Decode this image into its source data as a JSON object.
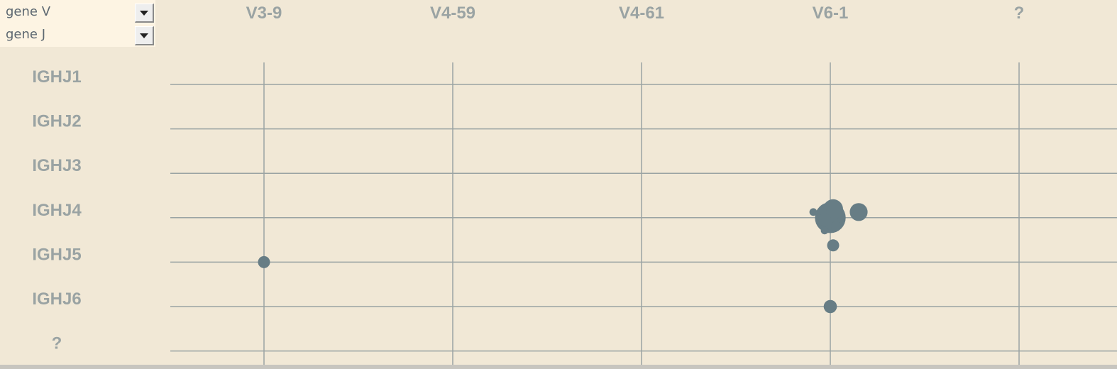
{
  "selectors": [
    {
      "label": "gene V"
    },
    {
      "label": "gene J"
    }
  ],
  "colors": {
    "background": "#f1e8d6",
    "selector_bg": "#fdf4e3",
    "grid": "#9aa3a3",
    "bubble": "#677d85",
    "label": "#9aa3a3"
  },
  "chart_data": {
    "type": "scatter",
    "x_categories": [
      "V3-9",
      "V4-59",
      "V4-61",
      "V6-1",
      "?"
    ],
    "y_categories": [
      "IGHJ1",
      "IGHJ2",
      "IGHJ3",
      "IGHJ4",
      "IGHJ5",
      "IGHJ6",
      "?"
    ],
    "grid": true,
    "points": [
      {
        "x": "V3-9",
        "y": "IGHJ5",
        "size": 1
      },
      {
        "x": "V6-1",
        "y": "IGHJ6",
        "size": 1.2
      },
      {
        "x": "V6-1",
        "y": "IGHJ4",
        "size": 6.5
      },
      {
        "x": "V6-1",
        "y": "IGHJ4",
        "size": 2.2
      },
      {
        "x": "V6-1",
        "y": "IGHJ4",
        "size": 2.7
      },
      {
        "x": "V6-1",
        "y": "IGHJ4",
        "size": 1.0
      },
      {
        "x": "V6-1",
        "y": "IGHJ4",
        "size": 0.7
      },
      {
        "x": "V6-1",
        "y": "IGHJ4",
        "size": 0.7
      },
      {
        "x": "V6-1",
        "y": "IGHJ4",
        "size": 0.4
      },
      {
        "x": "V6-1",
        "y": "IGHJ4",
        "size": 0.4
      },
      {
        "x": "V6-1",
        "y": "IGHJ4",
        "size": 1.1
      }
    ]
  }
}
